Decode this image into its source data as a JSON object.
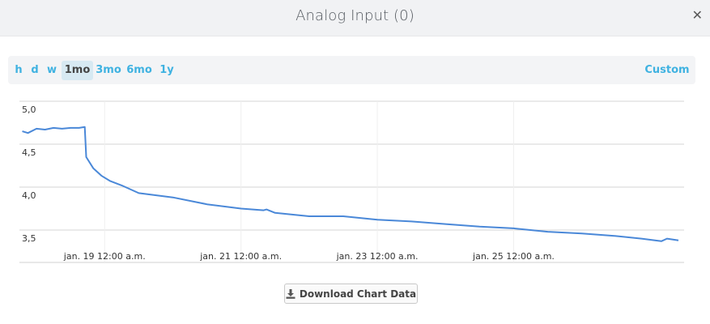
{
  "dialog": {
    "title": "Analog Input (0)",
    "close_glyph": "✕"
  },
  "range": {
    "buttons": [
      "h",
      "d",
      "w",
      "1mo",
      "3mo",
      "6mo",
      "1y"
    ],
    "active": "1mo",
    "custom_label": "Custom",
    "color_accent": "#3fb2e1",
    "color_active_bg": "#d7e9f2"
  },
  "download": {
    "label": "Download Chart Data",
    "icon": "download-icon"
  },
  "chart_data": {
    "type": "line",
    "title": "",
    "xlabel": "",
    "ylabel": "",
    "ylim": [
      3.25,
      5.0
    ],
    "yticks": [
      "5,0",
      "4,5",
      "4,0",
      "3,5"
    ],
    "ytick_values": [
      5.0,
      4.5,
      4.0,
      3.5
    ],
    "xtick_labels": [
      "jan. 19 12:00 a.m.",
      "jan. 21 12:00 a.m.",
      "jan. 23 12:00 a.m.",
      "jan. 25 12:00 a.m."
    ],
    "xtick_dates": [
      "2000-01-19T00:00",
      "2000-01-21T00:00",
      "2000-01-23T00:00",
      "2000-01-25T00:00"
    ],
    "grid": true,
    "line_color": "#4a88d8",
    "series": [
      {
        "x": [
          "2000-01-17T19:00",
          "2000-01-17T21:00",
          "2000-01-18T00:00",
          "2000-01-18T03:00",
          "2000-01-18T06:00",
          "2000-01-18T09:00",
          "2000-01-18T12:00",
          "2000-01-18T15:00",
          "2000-01-18T17:00",
          "2000-01-18T17:30",
          "2000-01-18T20:00",
          "2000-01-18T23:00",
          "2000-01-19T02:00",
          "2000-01-19T06:00",
          "2000-01-19T12:00",
          "2000-01-20T00:00",
          "2000-01-20T12:00",
          "2000-01-21T00:00",
          "2000-01-21T08:00",
          "2000-01-21T09:00",
          "2000-01-21T12:00",
          "2000-01-22T00:00",
          "2000-01-22T12:00",
          "2000-01-23T00:00",
          "2000-01-23T12:00",
          "2000-01-24T00:00",
          "2000-01-24T12:00",
          "2000-01-25T00:00",
          "2000-01-25T12:00",
          "2000-01-26T00:00",
          "2000-01-26T12:00",
          "2000-01-26T21:00",
          "2000-01-27T04:00",
          "2000-01-27T06:00",
          "2000-01-27T10:00"
        ],
        "y": [
          4.65,
          4.63,
          4.68,
          4.67,
          4.69,
          4.68,
          4.69,
          4.69,
          4.7,
          4.35,
          4.22,
          4.13,
          4.07,
          4.02,
          3.93,
          3.88,
          3.8,
          3.75,
          3.73,
          3.74,
          3.7,
          3.66,
          3.66,
          3.62,
          3.6,
          3.57,
          3.54,
          3.52,
          3.48,
          3.46,
          3.43,
          3.4,
          3.37,
          3.4,
          3.38
        ]
      }
    ]
  }
}
